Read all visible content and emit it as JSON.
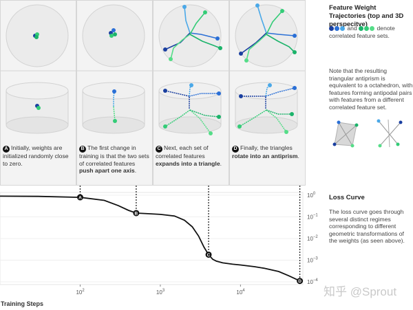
{
  "panels": [
    {
      "caption_pre": "Initially, weights are initialized randomly close to zero.",
      "caption_bold": "",
      "caption_post": "",
      "marker": "A"
    },
    {
      "caption_pre": "The first change in training is that the two sets of correlated features ",
      "caption_bold": "push apart one axis",
      "caption_post": ".",
      "marker": "B"
    },
    {
      "caption_pre": "Next, each set of correlated features ",
      "caption_bold": "expands into a triangle",
      "caption_post": ".",
      "marker": "C"
    },
    {
      "caption_pre": "Finally, the triangles ",
      "caption_bold": "rotate into an antiprism",
      "caption_post": ".",
      "marker": "D"
    }
  ],
  "side": {
    "title": "Feature Weight Trajectories (top and 3D perspecitve)",
    "legend_and": "and",
    "legend_denote": "denote",
    "legend_text": "correlated feature sets.",
    "note": "Note that the resulting triangular antiprism is equivalent to a octahedron, with features forming antipodal pairs with features from a different correlated feature set.",
    "loss_title": "Loss Curve",
    "loss_text": "The loss curve goes through several distinct regimes corresponding to different geometric transformations of the weights (as seen above)."
  },
  "colors": {
    "blue_dark": "#1a3fa0",
    "blue_mid": "#2a6fd6",
    "blue_light": "#4aa8e8",
    "green_dark": "#1bb36a",
    "green_mid": "#33cc77",
    "green_light": "#55dd88"
  },
  "watermark": "知乎 @Sprout",
  "chart_data": {
    "type": "line",
    "title": "",
    "xlabel": "Training Steps",
    "ylabel": "",
    "x_scale": "log",
    "y_scale": "log",
    "xlim": [
      10,
      60000
    ],
    "ylim": [
      0.0001,
      1
    ],
    "x_ticks": [
      {
        "v": 100,
        "label": "10",
        "sup": "2"
      },
      {
        "v": 1000,
        "label": "10",
        "sup": "3"
      },
      {
        "v": 10000,
        "label": "10",
        "sup": "4"
      }
    ],
    "y_ticks": [
      {
        "v": 1,
        "label": "10",
        "sup": "0"
      },
      {
        "v": 0.1,
        "label": "10",
        "sup": "−1"
      },
      {
        "v": 0.01,
        "label": "10",
        "sup": "−2"
      },
      {
        "v": 0.001,
        "label": "10",
        "sup": "−3"
      },
      {
        "v": 0.0001,
        "label": "10",
        "sup": "−4"
      }
    ],
    "series": [
      {
        "x": [
          10,
          30,
          100,
          200,
          300,
          400,
          500,
          700,
          1000,
          1500,
          2000,
          2500,
          3000,
          3500,
          4000,
          4500,
          5000,
          6000,
          8000,
          10000,
          15000,
          20000,
          30000,
          40000,
          50000,
          55000
        ],
        "y": [
          0.9,
          0.88,
          0.8,
          0.58,
          0.33,
          0.2,
          0.15,
          0.14,
          0.13,
          0.11,
          0.07,
          0.035,
          0.013,
          0.004,
          0.0018,
          0.0011,
          0.0009,
          0.00075,
          0.00065,
          0.0006,
          0.0005,
          0.00042,
          0.0003,
          0.00019,
          0.00013,
          0.00011
        ]
      }
    ],
    "annotations": [
      {
        "label": "A",
        "x": 100,
        "y": 0.8
      },
      {
        "label": "B",
        "x": 500,
        "y": 0.15
      },
      {
        "label": "C",
        "x": 4000,
        "y": 0.0018
      },
      {
        "label": "D",
        "x": 55000,
        "y": 0.00011
      }
    ]
  }
}
